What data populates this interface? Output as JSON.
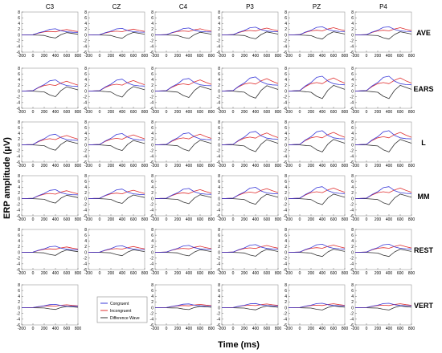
{
  "figure": {
    "ylabel": "ERP amplitude (μV)",
    "xlabel": "Time (ms)"
  },
  "legend": {
    "items": [
      {
        "label": "Congruent",
        "color": "#3a3ad8"
      },
      {
        "label": "Incongruent",
        "color": "#e03030"
      },
      {
        "label": "Difference Wave",
        "color": "#333333"
      }
    ]
  },
  "colors": {
    "congruent": "#3a3ad8",
    "incongruent": "#e03030",
    "difference": "#333333",
    "frame": "#999999"
  },
  "chart_data": {
    "type": "line",
    "columns": [
      "C3",
      "CZ",
      "C4",
      "P3",
      "PZ",
      "P4"
    ],
    "rows": [
      "AVE",
      "EARS",
      "L",
      "MM",
      "REST",
      "VERT"
    ],
    "empty_panels": [
      [
        "VERT",
        "CZ"
      ]
    ],
    "xlim": [
      -200,
      800
    ],
    "ylim": [
      -6,
      8
    ],
    "x_ticks": [
      -200,
      0,
      200,
      400,
      600,
      800
    ],
    "y_ticks": [
      -6,
      -4,
      -2,
      0,
      2,
      4,
      6,
      8
    ],
    "x": [
      -200,
      -100,
      0,
      100,
      200,
      300,
      400,
      500,
      600,
      700,
      800
    ],
    "series_names": [
      "Congruent",
      "Incongruent",
      "Difference Wave"
    ],
    "row_amplitude_scale": {
      "AVE": 0.55,
      "EARS": 1.0,
      "L": 0.95,
      "MM": 0.8,
      "REST": 0.55,
      "VERT": 0.3
    },
    "column_amplitude_scale": {
      "C3": 0.75,
      "CZ": 0.8,
      "C4": 0.85,
      "P3": 0.95,
      "PZ": 1.0,
      "P4": 1.0
    },
    "base_waveforms": {
      "congruent": [
        0.0,
        0.1,
        0.2,
        1.8,
        3.0,
        4.8,
        5.2,
        3.5,
        2.6,
        2.3,
        2.2
      ],
      "incongruent": [
        0.0,
        0.1,
        0.2,
        1.6,
        2.6,
        3.0,
        2.6,
        3.8,
        4.6,
        3.6,
        2.8
      ],
      "difference": [
        0.0,
        0.0,
        0.0,
        -0.2,
        -0.4,
        -1.8,
        -2.6,
        0.3,
        2.0,
        1.3,
        0.6
      ]
    }
  }
}
